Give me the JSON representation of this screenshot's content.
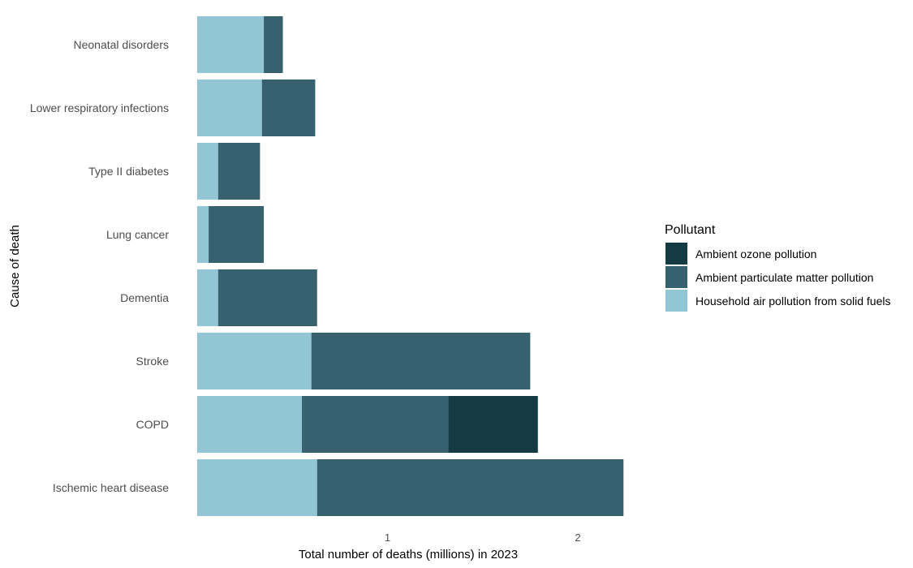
{
  "chart_data": {
    "type": "bar",
    "orientation": "horizontal",
    "stacked": true,
    "xlabel": "Total number of deaths (millions) in 2023",
    "ylabel": "Cause of death",
    "xlim": [
      0,
      2.3
    ],
    "xticks": [
      1,
      2
    ],
    "grid": false,
    "categories": [
      "Neonatal disorders",
      "Lower respiratory infections",
      "Type II diabetes",
      "Lung cancer",
      "Dementia",
      "Stroke",
      "COPD",
      "Ischemic heart disease"
    ],
    "series": [
      {
        "name": "Household air pollution from solid fuels",
        "color": "#92c6d5",
        "values": [
          0.35,
          0.34,
          0.11,
          0.06,
          0.11,
          0.6,
          0.55,
          0.63
        ]
      },
      {
        "name": "Ambient particulate matter pollution",
        "color": "#386170",
        "values": [
          0.1,
          0.28,
          0.22,
          0.29,
          0.52,
          1.15,
          0.77,
          1.61
        ]
      },
      {
        "name": "Ambient ozone pollution",
        "color": "#143a44",
        "values": [
          0,
          0,
          0,
          0,
          0,
          0,
          0.47,
          0
        ]
      }
    ],
    "legend": {
      "title": "Pollutant",
      "placement": "right",
      "order": [
        "Ambient ozone pollution",
        "Ambient particulate matter pollution",
        "Household air pollution from solid fuels"
      ]
    }
  }
}
